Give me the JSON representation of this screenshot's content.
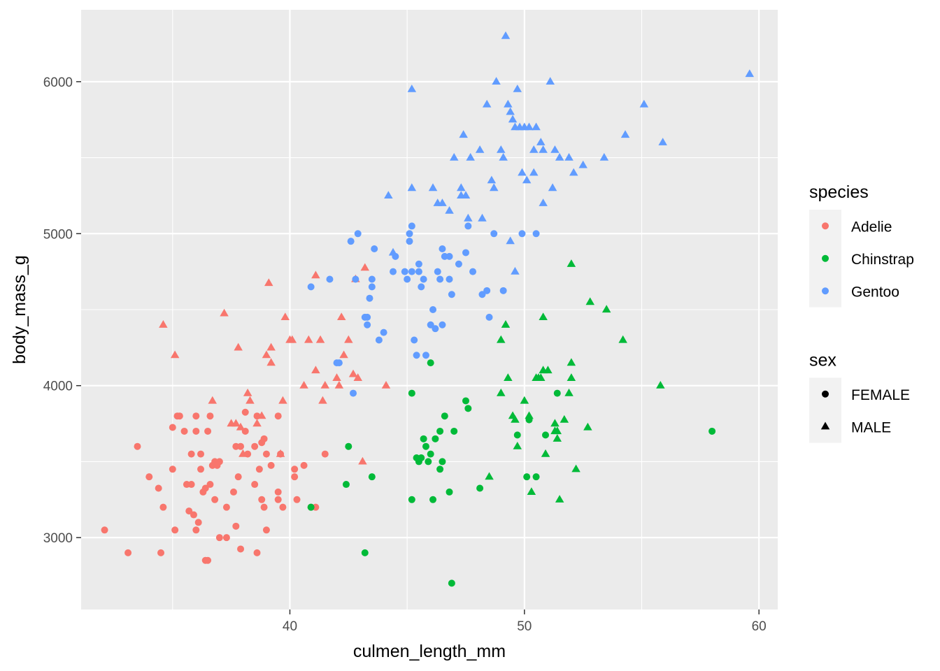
{
  "chart_data": {
    "type": "scatter",
    "xlabel": "culmen_length_mm",
    "ylabel": "body_mass_g",
    "xlim": [
      31.1,
      60.8
    ],
    "ylim": [
      2527,
      6473
    ],
    "x_ticks": [
      40,
      50,
      60
    ],
    "y_ticks": [
      3000,
      4000,
      5000,
      6000
    ],
    "x_minor": [
      35,
      45,
      55
    ],
    "y_minor": [
      3500,
      4500,
      5500
    ],
    "grid": true,
    "legend_position": "right",
    "colors": {
      "Adelie": "#F8766D",
      "Chinstrap": "#00BA38",
      "Gentoo": "#619CFF",
      "legend_key": "#000000",
      "panel": "#EBEBEB",
      "grid": "#FFFFFF"
    },
    "legends": [
      {
        "title": "species",
        "aesthetic": "color",
        "entries": [
          "Adelie",
          "Chinstrap",
          "Gentoo"
        ]
      },
      {
        "title": "sex",
        "aesthetic": "shape",
        "entries": [
          "FEMALE",
          "MALE"
        ]
      }
    ],
    "series": [
      {
        "species": "Adelie",
        "sex": "FEMALE",
        "points": [
          [
            32.1,
            3050
          ],
          [
            33.1,
            2900
          ],
          [
            33.5,
            3600
          ],
          [
            34.0,
            3400
          ],
          [
            34.4,
            3325
          ],
          [
            34.5,
            2900
          ],
          [
            34.6,
            3200
          ],
          [
            35.0,
            3725
          ],
          [
            35.0,
            3450
          ],
          [
            35.1,
            3050
          ],
          [
            35.2,
            3800
          ],
          [
            35.3,
            3800
          ],
          [
            35.5,
            3700
          ],
          [
            35.6,
            3350
          ],
          [
            35.7,
            3175
          ],
          [
            35.8,
            3350
          ],
          [
            35.8,
            3550
          ],
          [
            35.9,
            3150
          ],
          [
            36.0,
            3800
          ],
          [
            36.0,
            3050
          ],
          [
            36.0,
            3700
          ],
          [
            36.1,
            3100
          ],
          [
            36.2,
            3450
          ],
          [
            36.2,
            3550
          ],
          [
            36.3,
            3300
          ],
          [
            36.4,
            2850
          ],
          [
            36.4,
            3325
          ],
          [
            36.5,
            3700
          ],
          [
            36.5,
            2850
          ],
          [
            36.6,
            3800
          ],
          [
            36.6,
            3350
          ],
          [
            36.7,
            3475
          ],
          [
            36.8,
            3500
          ],
          [
            36.8,
            3250
          ],
          [
            36.9,
            3475
          ],
          [
            37.0,
            3500
          ],
          [
            37.0,
            3000
          ],
          [
            37.3,
            3200
          ],
          [
            37.3,
            3000
          ],
          [
            37.6,
            3300
          ],
          [
            37.7,
            3075
          ],
          [
            37.7,
            3600
          ],
          [
            37.8,
            3400
          ],
          [
            37.9,
            2925
          ],
          [
            37.9,
            3600
          ],
          [
            38.1,
            3700
          ],
          [
            38.1,
            3825
          ],
          [
            38.2,
            3550
          ],
          [
            38.5,
            3600
          ],
          [
            38.5,
            3350
          ],
          [
            38.6,
            2900
          ],
          [
            38.6,
            3800
          ],
          [
            38.7,
            3450
          ],
          [
            38.8,
            3625
          ],
          [
            38.8,
            3250
          ],
          [
            38.9,
            3200
          ],
          [
            38.9,
            3650
          ],
          [
            39.0,
            3050
          ],
          [
            39.0,
            3550
          ],
          [
            39.2,
            3475
          ],
          [
            39.5,
            3800
          ],
          [
            39.5,
            3300
          ],
          [
            39.5,
            3250
          ],
          [
            39.6,
            3550
          ],
          [
            39.7,
            3200
          ],
          [
            40.2,
            3450
          ],
          [
            40.2,
            3400
          ],
          [
            40.3,
            3250
          ],
          [
            40.6,
            3475
          ],
          [
            40.9,
            3200
          ],
          [
            41.1,
            3200
          ],
          [
            41.5,
            3550
          ]
        ]
      },
      {
        "species": "Adelie",
        "sex": "MALE",
        "points": [
          [
            34.6,
            4400
          ],
          [
            35.1,
            4200
          ],
          [
            36.7,
            3900
          ],
          [
            37.2,
            4475
          ],
          [
            37.5,
            3750
          ],
          [
            37.7,
            3750
          ],
          [
            37.8,
            4250
          ],
          [
            37.9,
            3725
          ],
          [
            38.0,
            3550
          ],
          [
            38.2,
            3950
          ],
          [
            38.3,
            3900
          ],
          [
            38.6,
            3750
          ],
          [
            38.8,
            3800
          ],
          [
            39.1,
            4675
          ],
          [
            39.2,
            4250
          ],
          [
            39.2,
            4150
          ],
          [
            39.6,
            3550
          ],
          [
            39.7,
            3900
          ],
          [
            39.8,
            4450
          ],
          [
            40.1,
            4300
          ],
          [
            40.6,
            4000
          ],
          [
            40.8,
            4300
          ],
          [
            41.1,
            4725
          ],
          [
            41.1,
            4100
          ],
          [
            41.3,
            4300
          ],
          [
            41.4,
            3900
          ],
          [
            41.5,
            4000
          ],
          [
            42.0,
            4050
          ],
          [
            42.1,
            4000
          ],
          [
            42.2,
            4450
          ],
          [
            42.3,
            4200
          ],
          [
            42.5,
            4300
          ],
          [
            42.7,
            4075
          ],
          [
            42.8,
            4700
          ],
          [
            42.9,
            4050
          ],
          [
            43.1,
            3500
          ],
          [
            43.2,
            4775
          ],
          [
            44.1,
            4000
          ],
          [
            40.0,
            4300
          ],
          [
            39.0,
            4200
          ]
        ]
      },
      {
        "species": "Chinstrap",
        "sex": "FEMALE",
        "points": [
          [
            40.9,
            3200
          ],
          [
            42.4,
            3350
          ],
          [
            42.5,
            3600
          ],
          [
            43.2,
            2900
          ],
          [
            43.5,
            3400
          ],
          [
            45.2,
            3950
          ],
          [
            45.2,
            3250
          ],
          [
            45.4,
            3525
          ],
          [
            45.5,
            3500
          ],
          [
            45.6,
            3525
          ],
          [
            45.7,
            3650
          ],
          [
            45.8,
            3600
          ],
          [
            46.0,
            3550
          ],
          [
            46.1,
            3250
          ],
          [
            46.2,
            3650
          ],
          [
            46.4,
            3700
          ],
          [
            46.5,
            3500
          ],
          [
            46.4,
            3450
          ],
          [
            46.6,
            3800
          ],
          [
            46.8,
            3300
          ],
          [
            46.9,
            2700
          ],
          [
            47.0,
            3700
          ],
          [
            47.5,
            3900
          ],
          [
            47.6,
            3850
          ],
          [
            48.1,
            3325
          ],
          [
            49.7,
            3675
          ],
          [
            50.1,
            3400
          ],
          [
            50.2,
            3775
          ],
          [
            50.5,
            3400
          ],
          [
            50.9,
            3675
          ],
          [
            51.4,
            3950
          ],
          [
            58.0,
            3700
          ],
          [
            46.0,
            4150
          ],
          [
            45.9,
            3500
          ]
        ]
      },
      {
        "species": "Chinstrap",
        "sex": "MALE",
        "points": [
          [
            48.5,
            3400
          ],
          [
            49.0,
            3950
          ],
          [
            49.0,
            4300
          ],
          [
            49.2,
            4400
          ],
          [
            49.3,
            4050
          ],
          [
            49.5,
            3800
          ],
          [
            49.6,
            3775
          ],
          [
            49.7,
            3600
          ],
          [
            50.0,
            3900
          ],
          [
            50.3,
            3300
          ],
          [
            50.5,
            4050
          ],
          [
            50.6,
            4050
          ],
          [
            50.7,
            4050
          ],
          [
            50.8,
            4100
          ],
          [
            50.8,
            4450
          ],
          [
            50.9,
            3550
          ],
          [
            51.0,
            4100
          ],
          [
            51.3,
            3750
          ],
          [
            51.4,
            3650
          ],
          [
            51.4,
            3700
          ],
          [
            51.5,
            3250
          ],
          [
            51.7,
            3775
          ],
          [
            51.9,
            3950
          ],
          [
            52.0,
            4800
          ],
          [
            52.0,
            4150
          ],
          [
            52.0,
            4050
          ],
          [
            52.2,
            3450
          ],
          [
            52.7,
            3725
          ],
          [
            52.8,
            4550
          ],
          [
            53.5,
            4500
          ],
          [
            54.2,
            4300
          ],
          [
            55.8,
            4000
          ],
          [
            51.3,
            3700
          ],
          [
            50.2,
            3800
          ]
        ]
      },
      {
        "species": "Gentoo",
        "sex": "FEMALE",
        "points": [
          [
            40.9,
            4650
          ],
          [
            41.7,
            4700
          ],
          [
            42.0,
            4150
          ],
          [
            42.6,
            4950
          ],
          [
            42.7,
            3950
          ],
          [
            42.8,
            4700
          ],
          [
            42.9,
            5000
          ],
          [
            43.2,
            4450
          ],
          [
            43.3,
            4400
          ],
          [
            43.4,
            4575
          ],
          [
            43.5,
            4650
          ],
          [
            43.5,
            4700
          ],
          [
            43.6,
            4900
          ],
          [
            43.8,
            4300
          ],
          [
            44.0,
            4350
          ],
          [
            44.4,
            4750
          ],
          [
            44.5,
            4850
          ],
          [
            44.9,
            4750
          ],
          [
            45.0,
            4700
          ],
          [
            45.1,
            4950
          ],
          [
            45.1,
            5000
          ],
          [
            45.2,
            5050
          ],
          [
            45.2,
            4750
          ],
          [
            45.3,
            4300
          ],
          [
            45.4,
            4200
          ],
          [
            45.5,
            4800
          ],
          [
            45.5,
            4750
          ],
          [
            45.6,
            4650
          ],
          [
            45.7,
            4700
          ],
          [
            45.8,
            4200
          ],
          [
            46.0,
            4400
          ],
          [
            46.1,
            4500
          ],
          [
            46.2,
            4375
          ],
          [
            46.3,
            4750
          ],
          [
            46.4,
            4700
          ],
          [
            46.5,
            4400
          ],
          [
            46.5,
            4900
          ],
          [
            46.6,
            4850
          ],
          [
            46.8,
            4700
          ],
          [
            46.8,
            4850
          ],
          [
            46.9,
            4600
          ],
          [
            47.2,
            4800
          ],
          [
            47.5,
            4875
          ],
          [
            47.6,
            5050
          ],
          [
            47.8,
            4750
          ],
          [
            48.2,
            4600
          ],
          [
            48.4,
            4625
          ],
          [
            48.5,
            4450
          ],
          [
            48.7,
            5000
          ],
          [
            49.1,
            4625
          ],
          [
            49.9,
            5000
          ],
          [
            50.5,
            5000
          ],
          [
            42.1,
            4150
          ],
          [
            43.3,
            4450
          ]
        ]
      },
      {
        "species": "Gentoo",
        "sex": "MALE",
        "points": [
          [
            44.2,
            5250
          ],
          [
            44.4,
            4875
          ],
          [
            45.2,
            5300
          ],
          [
            45.2,
            5950
          ],
          [
            46.1,
            5300
          ],
          [
            46.3,
            5200
          ],
          [
            46.5,
            5200
          ],
          [
            46.8,
            5150
          ],
          [
            47.0,
            5500
          ],
          [
            47.3,
            5250
          ],
          [
            47.4,
            5650
          ],
          [
            47.7,
            5500
          ],
          [
            48.1,
            5550
          ],
          [
            48.4,
            5850
          ],
          [
            48.6,
            5350
          ],
          [
            48.7,
            5300
          ],
          [
            48.8,
            6000
          ],
          [
            49.0,
            5550
          ],
          [
            49.1,
            5500
          ],
          [
            49.2,
            6300
          ],
          [
            49.3,
            5850
          ],
          [
            49.4,
            5800
          ],
          [
            49.5,
            5750
          ],
          [
            49.6,
            5700
          ],
          [
            49.7,
            5950
          ],
          [
            49.8,
            5700
          ],
          [
            49.9,
            5400
          ],
          [
            50.0,
            5700
          ],
          [
            50.1,
            5350
          ],
          [
            50.2,
            5700
          ],
          [
            50.4,
            5550
          ],
          [
            50.5,
            5700
          ],
          [
            50.7,
            5600
          ],
          [
            50.8,
            5550
          ],
          [
            51.1,
            6000
          ],
          [
            51.3,
            5550
          ],
          [
            51.5,
            5500
          ],
          [
            51.9,
            5500
          ],
          [
            52.1,
            5400
          ],
          [
            52.5,
            5450
          ],
          [
            53.4,
            5500
          ],
          [
            54.3,
            5650
          ],
          [
            55.1,
            5850
          ],
          [
            55.9,
            5600
          ],
          [
            59.6,
            6050
          ],
          [
            47.6,
            5100
          ],
          [
            48.2,
            5100
          ],
          [
            49.4,
            4950
          ],
          [
            50.8,
            5200
          ],
          [
            51.2,
            5300
          ],
          [
            49.6,
            4750
          ],
          [
            47.3,
            5300
          ],
          [
            50.4,
            5400
          ],
          [
            47.5,
            5250
          ]
        ]
      }
    ]
  }
}
